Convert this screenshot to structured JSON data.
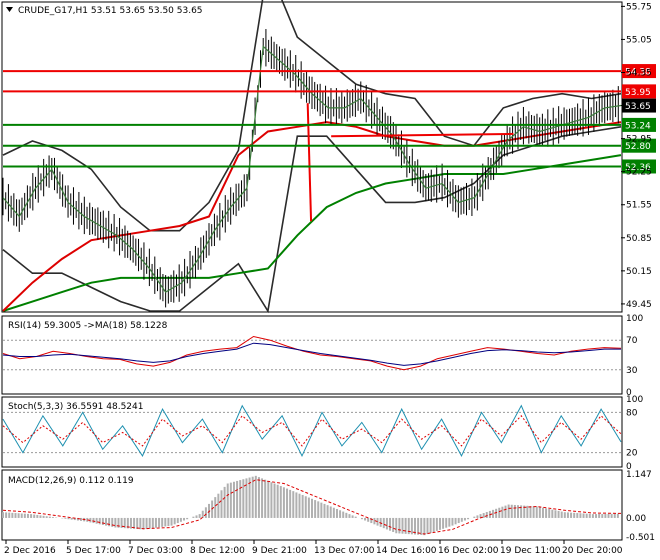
{
  "colors": {
    "price": "#000000",
    "bollinger": "#2b2b2b",
    "ma_fast": "#3a7a3a",
    "ma_slow_green": "#008000",
    "ma_red": "#dd0000",
    "level_red": "#ee0000",
    "level_green": "#008000",
    "trend": "#ee0000",
    "rsi_line": "#dd0000",
    "rsi_ma": "#000080",
    "stoch_main": "#1e90b0",
    "stoch_signal": "#dd0000",
    "macd_hist": "#b0b0b0",
    "macd_signal": "#dd0000"
  },
  "chart_data": [
    {
      "type": "line",
      "panel": "price",
      "title": "CRUDE_G17,H1  53.51 53.65 53.50 53.65",
      "x_labels": [
        "2 Dec 2016",
        "5 Dec 17:00",
        "7 Dec 03:00",
        "8 Dec 12:00",
        "9 Dec 21:00",
        "13 Dec 07:00",
        "14 Dec 16:00",
        "16 Dec 02:00",
        "19 Dec 11:00",
        "20 Dec 20:00"
      ],
      "y_ticks": [
        "55.75",
        "55.05",
        "54.35",
        "53.65",
        "52.95",
        "52.25",
        "51.55",
        "50.85",
        "50.15",
        "49.45"
      ],
      "ylim": [
        49.3,
        55.8
      ],
      "current_price": "53.65",
      "levels": [
        {
          "label": "54.38",
          "value": 54.38,
          "kind": "red"
        },
        {
          "label": "53.95",
          "value": 53.95,
          "kind": "red"
        },
        {
          "label": "53.24",
          "value": 53.24,
          "kind": "green"
        },
        {
          "label": "52.80",
          "value": 52.8,
          "kind": "green"
        },
        {
          "label": "52.36",
          "value": 52.36,
          "kind": "green"
        }
      ],
      "price_path": [
        51.7,
        51.3,
        51.9,
        52.3,
        51.6,
        51.3,
        51.1,
        50.9,
        50.6,
        50.2,
        49.7,
        49.9,
        50.4,
        51.0,
        51.5,
        51.9,
        54.9,
        54.6,
        54.3,
        53.9,
        53.6,
        53.6,
        53.8,
        53.4,
        53.0,
        52.4,
        51.9,
        52.0,
        51.6,
        51.7,
        52.3,
        52.9,
        53.2,
        53.1,
        53.2,
        53.3,
        53.4,
        53.6,
        53.65
      ],
      "ma_green_path": [
        49.3,
        49.5,
        49.7,
        49.9,
        50.0,
        50.0,
        50.0,
        50.0,
        50.1,
        50.2,
        50.9,
        51.5,
        51.8,
        52.0,
        52.1,
        52.2,
        52.2,
        52.2,
        52.3,
        52.4,
        52.5,
        52.6
      ],
      "ma_red_path": [
        49.3,
        49.9,
        50.4,
        50.8,
        50.9,
        51.0,
        51.1,
        51.3,
        52.6,
        53.1,
        53.2,
        53.3,
        53.2,
        53.0,
        52.9,
        52.8,
        52.8,
        52.9,
        53.0,
        53.1,
        53.2,
        53.3
      ],
      "bb_upper_path": [
        52.6,
        52.9,
        52.7,
        52.3,
        51.5,
        51.0,
        51.0,
        51.6,
        52.7,
        56.6,
        55.1,
        54.6,
        54.1,
        53.9,
        53.8,
        53.0,
        52.8,
        53.6,
        53.8,
        53.9,
        53.8,
        53.9
      ],
      "bb_lower_path": [
        50.6,
        50.1,
        50.1,
        49.8,
        49.5,
        49.3,
        49.3,
        49.8,
        50.3,
        49.3,
        53.0,
        53.0,
        52.3,
        51.6,
        51.6,
        51.7,
        52.0,
        52.6,
        52.8,
        53.0,
        53.1,
        53.2
      ],
      "trend_lines": [
        [
          [
            49.85,
            51.2
          ],
          [
            49.3,
            53.7
          ]
        ],
        [
          [
            53.1,
            53.0
          ],
          [
            82.6,
            53.05
          ]
        ]
      ]
    },
    {
      "type": "line",
      "panel": "rsi",
      "title": "RSI(14) 59.3005  ->MA(18) 58.1228",
      "y_ticks": [
        "100",
        "70",
        "30",
        "0"
      ],
      "ylim": [
        0,
        100
      ],
      "rsi_path": [
        52,
        45,
        48,
        55,
        52,
        48,
        45,
        44,
        38,
        35,
        40,
        50,
        55,
        58,
        60,
        75,
        70,
        62,
        55,
        50,
        48,
        45,
        42,
        35,
        30,
        35,
        45,
        50,
        55,
        60,
        58,
        55,
        52,
        50,
        55,
        58,
        60,
        59
      ],
      "ma_path": [
        50,
        48,
        48,
        50,
        51,
        49,
        47,
        45,
        42,
        40,
        42,
        48,
        52,
        55,
        58,
        66,
        64,
        60,
        56,
        52,
        49,
        46,
        43,
        39,
        36,
        38,
        42,
        47,
        52,
        56,
        57,
        56,
        54,
        53,
        54,
        56,
        58,
        58
      ]
    },
    {
      "type": "line",
      "panel": "stoch",
      "title": "Stoch(5,3,3) 36.5591 48.5241",
      "y_ticks": [
        "100",
        "80",
        "20",
        "0"
      ],
      "ylim": [
        0,
        100
      ],
      "main_path": [
        70,
        20,
        75,
        30,
        80,
        25,
        60,
        15,
        85,
        35,
        70,
        20,
        90,
        40,
        75,
        15,
        80,
        30,
        65,
        20,
        85,
        25,
        70,
        15,
        80,
        35,
        90,
        20,
        75,
        30,
        85,
        36
      ],
      "signal_path": [
        60,
        35,
        60,
        40,
        65,
        35,
        50,
        30,
        70,
        45,
        60,
        35,
        75,
        50,
        65,
        30,
        70,
        40,
        55,
        35,
        70,
        40,
        60,
        30,
        70,
        45,
        75,
        35,
        65,
        40,
        75,
        48
      ]
    },
    {
      "type": "bar",
      "panel": "macd",
      "title": "MACD(12,26,9) 0.112 0.119",
      "y_ticks": [
        "1.147",
        "0.00",
        "-0.501"
      ],
      "ylim": [
        -0.55,
        1.2
      ],
      "hist_path": [
        0.15,
        0.1,
        0.0,
        -0.1,
        -0.25,
        -0.3,
        -0.2,
        0.1,
        0.9,
        1.1,
        0.8,
        0.5,
        0.2,
        -0.1,
        -0.4,
        -0.45,
        -0.2,
        0.1,
        0.35,
        0.3,
        0.15,
        0.1,
        0.112
      ],
      "signal_path": [
        0.2,
        0.15,
        0.05,
        -0.05,
        -0.2,
        -0.28,
        -0.25,
        -0.05,
        0.6,
        1.0,
        0.9,
        0.6,
        0.3,
        0.0,
        -0.3,
        -0.42,
        -0.3,
        0.0,
        0.25,
        0.3,
        0.2,
        0.13,
        0.119
      ]
    }
  ]
}
